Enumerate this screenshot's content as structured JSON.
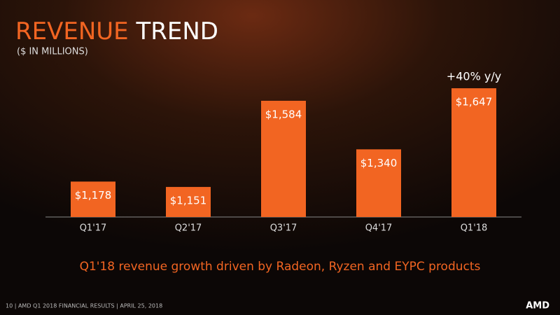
{
  "chart_data": {
    "type": "bar",
    "title": "REVENUE TREND",
    "subtitle": "($ IN MILLIONS)",
    "categories": [
      "Q1'17",
      "Q2'17",
      "Q3'17",
      "Q4'17",
      "Q1'18"
    ],
    "values": [
      1178,
      1151,
      1584,
      1340,
      1647
    ],
    "value_labels": [
      "$1,178",
      "$1,151",
      "$1,584",
      "$1,340",
      "$1,647"
    ],
    "color": "#f26522",
    "ylim": [
      1000,
      1700
    ],
    "annotation": "+40% y/y",
    "caption": "Q1'18 revenue growth driven by Radeon, Ryzen and EYPC products",
    "footer": "10  | AMD Q1 2018 FINANCIAL RESULTS | APRIL 25, 2018",
    "logo": "AMD"
  }
}
